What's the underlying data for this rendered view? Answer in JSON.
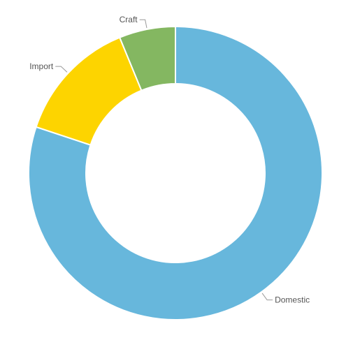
{
  "chart_data": {
    "type": "pie",
    "donut": true,
    "title": "",
    "slices": [
      {
        "label": "Domestic",
        "value": 80.1,
        "color": "#67b7dc"
      },
      {
        "label": "Import",
        "value": 13.7,
        "color": "#fdd400"
      },
      {
        "label": "Craft",
        "value": 6.2,
        "color": "#84b761"
      }
    ],
    "legend": "none"
  }
}
